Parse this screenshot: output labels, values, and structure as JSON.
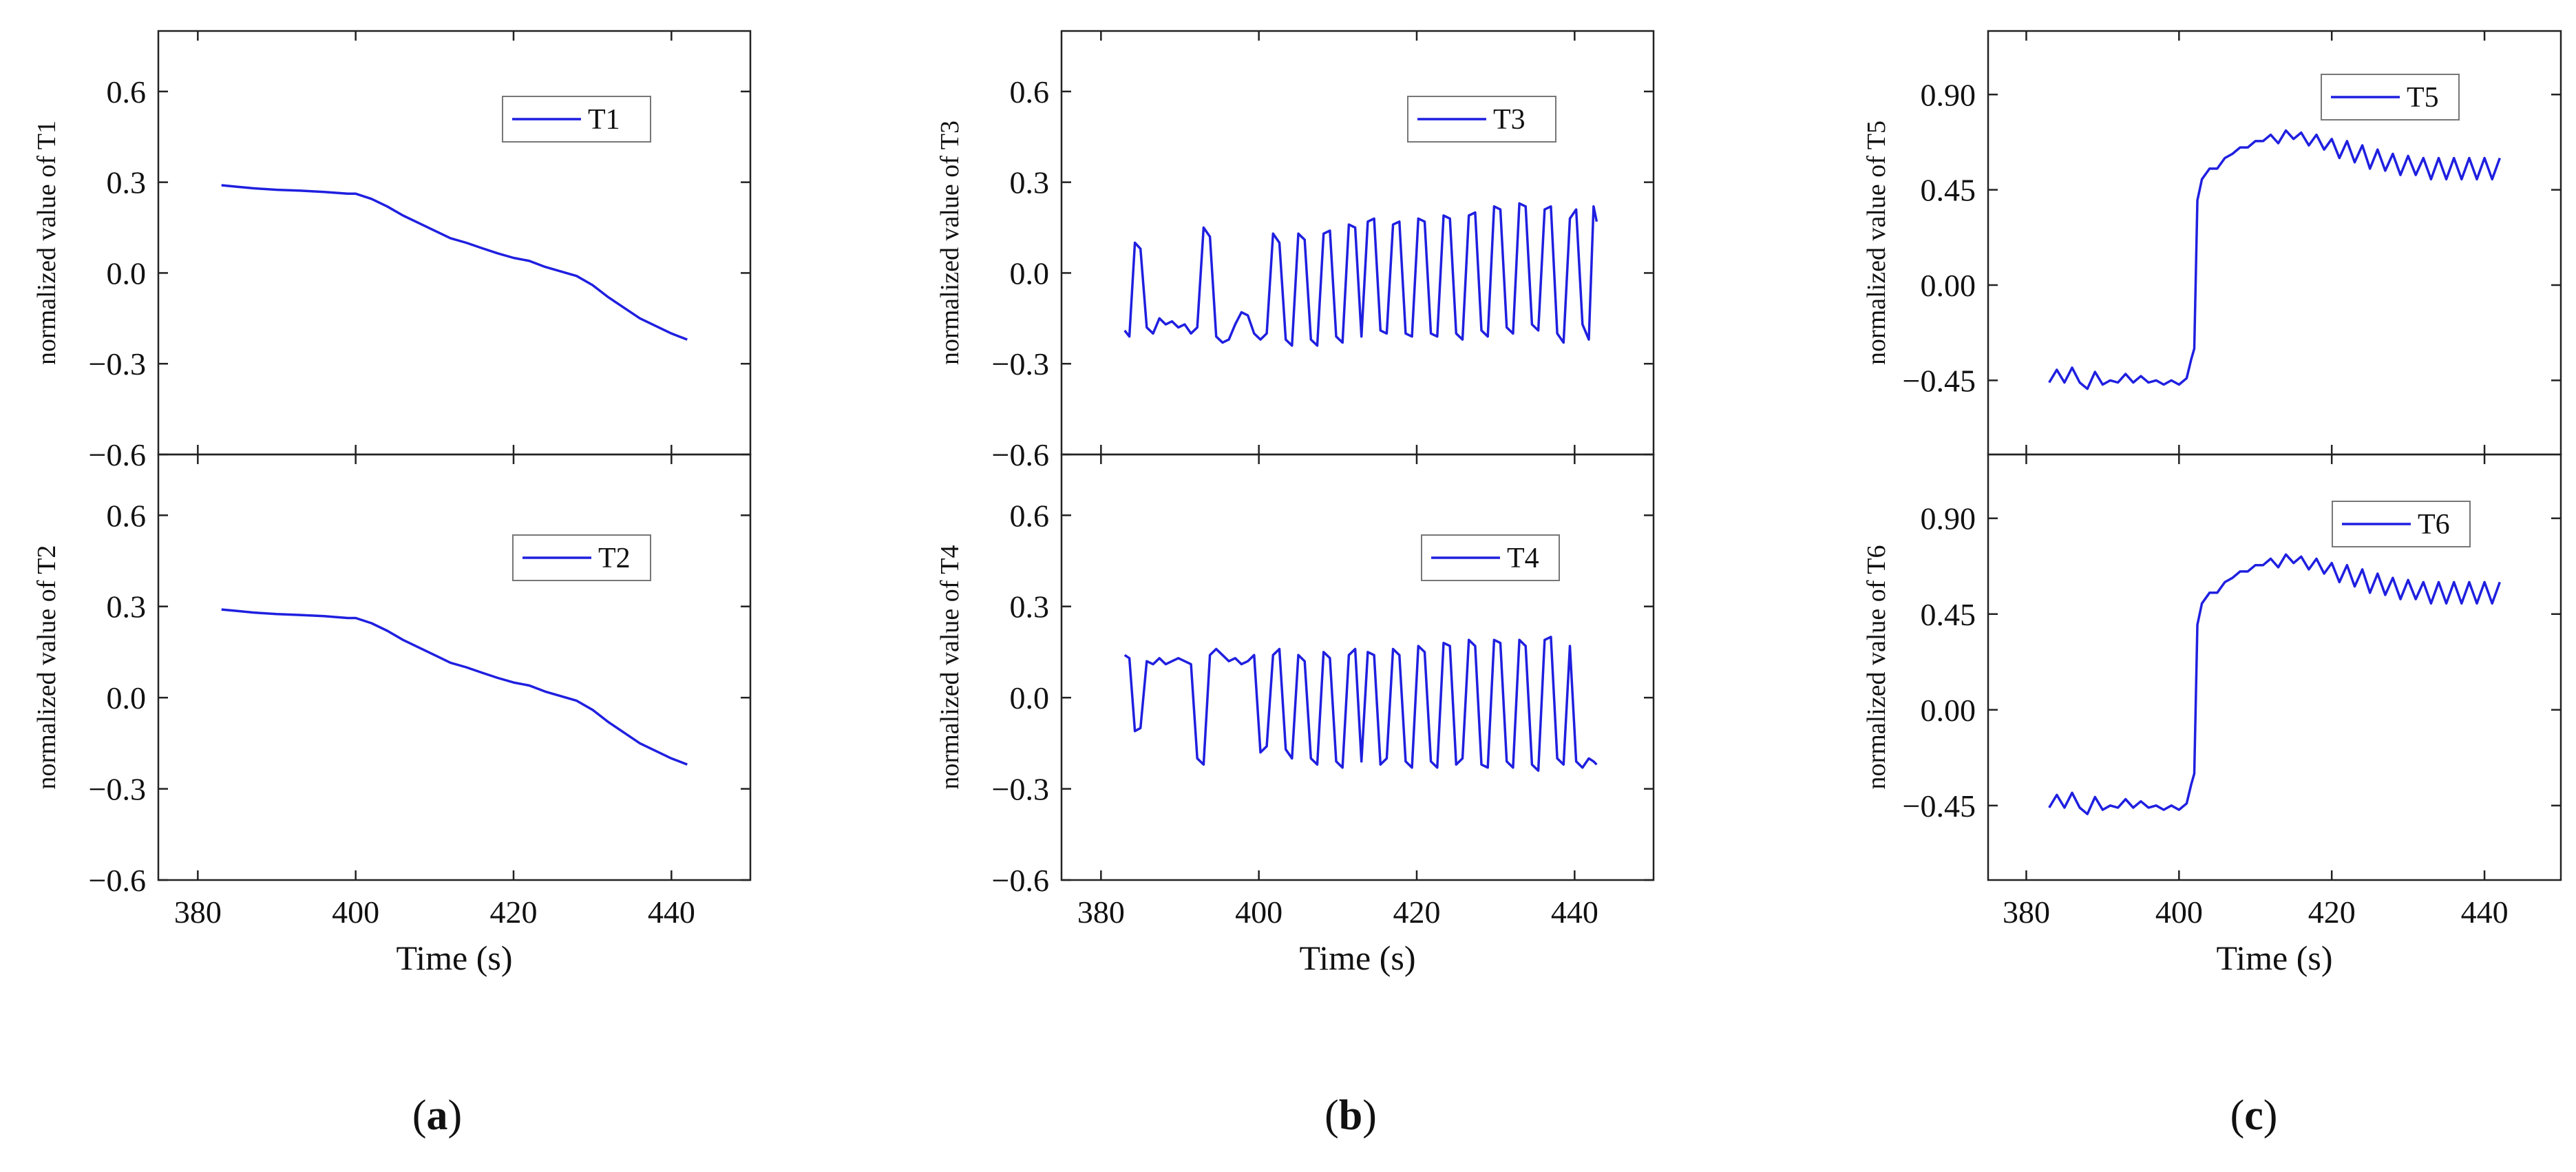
{
  "chart_data": [
    {
      "type": "line",
      "panel_label": "a",
      "xlabel": "Time (s)",
      "xlim": [
        375,
        450
      ],
      "xticks": [
        380,
        400,
        420,
        440
      ],
      "subplots": [
        {
          "ylabel": "normalized value of T1",
          "legend": "T1",
          "legend_position": "top-right",
          "color": "#1f1fe0",
          "ylim": [
            -0.6,
            0.8
          ],
          "yticks": [
            0.6,
            0.3,
            0.0,
            -0.3,
            -0.6
          ],
          "ytick_labels": [
            "0.6",
            "0.3",
            "0.0",
            "−0.3",
            "−0.6"
          ],
          "x": [
            383,
            385,
            387,
            390,
            393,
            396,
            399,
            400,
            402,
            404,
            406,
            408,
            410,
            412,
            414,
            416,
            418,
            420,
            422,
            424,
            426,
            428,
            430,
            432,
            434,
            436,
            438,
            440,
            441,
            442
          ],
          "y": [
            0.29,
            0.285,
            0.28,
            0.275,
            0.272,
            0.268,
            0.262,
            0.262,
            0.245,
            0.22,
            0.19,
            0.165,
            0.14,
            0.115,
            0.1,
            0.082,
            0.065,
            0.05,
            0.04,
            0.02,
            0.005,
            -0.01,
            -0.04,
            -0.08,
            -0.115,
            -0.15,
            -0.175,
            -0.2,
            -0.21,
            -0.22
          ]
        },
        {
          "ylabel": "normalized value of T2",
          "legend": "T2",
          "legend_position": "top-right",
          "color": "#1f1fe0",
          "ylim": [
            -0.6,
            0.8
          ],
          "yticks": [
            0.6,
            0.3,
            0.0,
            -0.3,
            -0.6
          ],
          "ytick_labels": [
            "0.6",
            "0.3",
            "0.0",
            "−0.3",
            "−0.6"
          ],
          "x": [
            383,
            385,
            387,
            390,
            393,
            396,
            399,
            400,
            402,
            404,
            406,
            408,
            410,
            412,
            414,
            416,
            418,
            420,
            422,
            424,
            426,
            428,
            430,
            432,
            434,
            436,
            438,
            440,
            441,
            442
          ],
          "y": [
            0.29,
            0.285,
            0.28,
            0.275,
            0.272,
            0.268,
            0.262,
            0.262,
            0.245,
            0.22,
            0.19,
            0.165,
            0.14,
            0.115,
            0.1,
            0.082,
            0.065,
            0.05,
            0.04,
            0.02,
            0.005,
            -0.01,
            -0.04,
            -0.08,
            -0.115,
            -0.15,
            -0.175,
            -0.2,
            -0.21,
            -0.22
          ]
        }
      ]
    },
    {
      "type": "line",
      "panel_label": "b",
      "xlabel": "Time (s)",
      "xlim": [
        375,
        450
      ],
      "xticks": [
        380,
        400,
        420,
        440
      ],
      "subplots": [
        {
          "ylabel": "normalized value of T3",
          "legend": "T3",
          "legend_position": "top-right",
          "color": "#1f1fe0",
          "ylim": [
            -0.6,
            0.8
          ],
          "yticks": [
            0.6,
            0.3,
            0.0,
            -0.3,
            -0.6
          ],
          "ytick_labels": [
            "0.6",
            "0.3",
            "0.0",
            "−0.3",
            "−0.6"
          ],
          "x": [
            383,
            383.6,
            384.3,
            385,
            385.8,
            386.6,
            387.4,
            388.2,
            389,
            389.8,
            390.6,
            391.4,
            392.2,
            393,
            393.8,
            394.6,
            395.4,
            396.2,
            397,
            397.8,
            398.6,
            399.4,
            400.2,
            401,
            401.8,
            402.6,
            403.4,
            404.2,
            405,
            405.8,
            406.6,
            407.4,
            408.2,
            409,
            409.8,
            410.6,
            411.4,
            412.2,
            413,
            413.8,
            414.6,
            415.4,
            416.2,
            417,
            417.8,
            418.6,
            419.4,
            420.2,
            421,
            421.8,
            422.6,
            423.4,
            424.2,
            425,
            425.8,
            426.6,
            427.4,
            428.2,
            429,
            429.8,
            430.6,
            431.4,
            432.2,
            433,
            433.8,
            434.6,
            435.4,
            436.2,
            437,
            437.8,
            438.6,
            439.4,
            440.2,
            441,
            441.8,
            442.4
          ],
          "y": [
            -0.19,
            -0.21,
            0.1,
            0.08,
            -0.18,
            -0.2,
            -0.15,
            -0.17,
            -0.16,
            -0.18,
            -0.17,
            -0.2,
            -0.18,
            0.15,
            0.12,
            -0.21,
            -0.23,
            -0.22,
            -0.17,
            -0.13,
            -0.14,
            -0.2,
            -0.22,
            -0.2,
            0.13,
            0.1,
            -0.22,
            -0.24,
            0.13,
            0.11,
            -0.22,
            -0.24,
            0.13,
            0.14,
            -0.21,
            -0.23,
            0.16,
            0.15,
            -0.21,
            0.17,
            0.18,
            -0.19,
            -0.2,
            0.16,
            0.17,
            -0.2,
            -0.21,
            0.18,
            0.17,
            -0.2,
            -0.21,
            0.19,
            0.18,
            -0.2,
            -0.22,
            0.19,
            0.2,
            -0.19,
            -0.21,
            0.22,
            0.21,
            -0.18,
            -0.2,
            0.23,
            0.22,
            -0.17,
            -0.19,
            0.21,
            0.22,
            -0.2,
            -0.23,
            0.18,
            0.21,
            -0.17,
            -0.22,
            0.22
          ],
          "y_tail": [
            0.17
          ]
        },
        {
          "ylabel": "normalized value of T4",
          "legend": "T4",
          "legend_position": "top-right",
          "color": "#1f1fe0",
          "ylim": [
            -0.6,
            0.8
          ],
          "yticks": [
            0.6,
            0.3,
            0.0,
            -0.3,
            -0.6
          ],
          "ytick_labels": [
            "0.6",
            "0.3",
            "0.0",
            "−0.3",
            "−0.6"
          ],
          "x": [
            383,
            383.6,
            384.3,
            385,
            385.8,
            386.6,
            387.4,
            388.2,
            389,
            389.8,
            390.6,
            391.4,
            392.2,
            393,
            393.8,
            394.6,
            395.4,
            396.2,
            397,
            397.8,
            398.6,
            399.4,
            400.2,
            401,
            401.8,
            402.6,
            403.4,
            404.2,
            405,
            405.8,
            406.6,
            407.4,
            408.2,
            409,
            409.8,
            410.6,
            411.4,
            412.2,
            413,
            413.8,
            414.6,
            415.4,
            416.2,
            417,
            417.8,
            418.6,
            419.4,
            420.2,
            421,
            421.8,
            422.6,
            423.4,
            424.2,
            425,
            425.8,
            426.6,
            427.4,
            428.2,
            429,
            429.8,
            430.6,
            431.4,
            432.2,
            433,
            433.8,
            434.6,
            435.4,
            436.2,
            437,
            437.8,
            438.6,
            439.4,
            440.2,
            441,
            441.8,
            442.4
          ],
          "y": [
            0.14,
            0.13,
            -0.11,
            -0.1,
            0.12,
            0.11,
            0.13,
            0.11,
            0.12,
            0.13,
            0.12,
            0.11,
            -0.2,
            -0.22,
            0.14,
            0.16,
            0.14,
            0.12,
            0.13,
            0.11,
            0.12,
            0.14,
            -0.18,
            -0.16,
            0.14,
            0.16,
            -0.17,
            -0.2,
            0.14,
            0.12,
            -0.2,
            -0.22,
            0.15,
            0.13,
            -0.21,
            -0.23,
            0.14,
            0.16,
            -0.21,
            0.15,
            0.14,
            -0.22,
            -0.2,
            0.16,
            0.14,
            -0.21,
            -0.23,
            0.17,
            0.15,
            -0.21,
            -0.23,
            0.18,
            0.17,
            -0.22,
            -0.2,
            0.19,
            0.17,
            -0.22,
            -0.23,
            0.19,
            0.18,
            -0.21,
            -0.23,
            0.19,
            0.17,
            -0.22,
            -0.24,
            0.19,
            0.2,
            -0.2,
            -0.22,
            0.17,
            -0.21,
            -0.23,
            -0.2,
            -0.21
          ],
          "y_tail": [
            -0.22
          ]
        }
      ]
    },
    {
      "type": "line",
      "panel_label": "c",
      "xlabel": "Time (s)",
      "xlim": [
        375,
        450
      ],
      "xticks": [
        380,
        400,
        420,
        440
      ],
      "subplots": [
        {
          "ylabel": "normalized value of T5",
          "legend": "T5",
          "legend_position": "top-right",
          "color": "#1f1fe0",
          "ylim": [
            -0.8,
            1.2
          ],
          "yticks": [
            0.9,
            0.45,
            0.0,
            -0.45
          ],
          "ytick_labels": [
            "0.90",
            "0.45",
            "0.00",
            "−0.45"
          ],
          "x": [
            383,
            384,
            385,
            386,
            387,
            388,
            389,
            390,
            391,
            392,
            393,
            394,
            395,
            396,
            397,
            398,
            399,
            400,
            401,
            401.6,
            402,
            402.4,
            403,
            404,
            405,
            406,
            407,
            408,
            409,
            410,
            411,
            412,
            413,
            414,
            415,
            416,
            417,
            418,
            419,
            420,
            421,
            422,
            423,
            424,
            425,
            426,
            427,
            428,
            429,
            430,
            431,
            432,
            433,
            434,
            435,
            436,
            437,
            438,
            439,
            440,
            441,
            442
          ],
          "y": [
            -0.46,
            -0.4,
            -0.46,
            -0.39,
            -0.46,
            -0.49,
            -0.41,
            -0.47,
            -0.45,
            -0.46,
            -0.42,
            -0.46,
            -0.43,
            -0.46,
            -0.45,
            -0.47,
            -0.45,
            -0.47,
            -0.44,
            -0.35,
            -0.3,
            0.4,
            0.5,
            0.55,
            0.55,
            0.6,
            0.62,
            0.65,
            0.65,
            0.68,
            0.68,
            0.71,
            0.67,
            0.73,
            0.69,
            0.72,
            0.66,
            0.71,
            0.64,
            0.69,
            0.6,
            0.68,
            0.58,
            0.66,
            0.55,
            0.64,
            0.54,
            0.62,
            0.52,
            0.61,
            0.52,
            0.6,
            0.5,
            0.6,
            0.5,
            0.6,
            0.5,
            0.6,
            0.5,
            0.6,
            0.5,
            0.6
          ]
        },
        {
          "ylabel": "normalized value of T6",
          "legend": "T6",
          "legend_position": "top-right",
          "color": "#1f1fe0",
          "ylim": [
            -0.8,
            1.2
          ],
          "yticks": [
            0.9,
            0.45,
            0.0,
            -0.45
          ],
          "ytick_labels": [
            "0.90",
            "0.45",
            "0.00",
            "−0.45"
          ],
          "x": [
            383,
            384,
            385,
            386,
            387,
            388,
            389,
            390,
            391,
            392,
            393,
            394,
            395,
            396,
            397,
            398,
            399,
            400,
            401,
            401.6,
            402,
            402.4,
            403,
            404,
            405,
            406,
            407,
            408,
            409,
            410,
            411,
            412,
            413,
            414,
            415,
            416,
            417,
            418,
            419,
            420,
            421,
            422,
            423,
            424,
            425,
            426,
            427,
            428,
            429,
            430,
            431,
            432,
            433,
            434,
            435,
            436,
            437,
            438,
            439,
            440,
            441,
            442
          ],
          "y": [
            -0.46,
            -0.4,
            -0.46,
            -0.39,
            -0.46,
            -0.49,
            -0.41,
            -0.47,
            -0.45,
            -0.46,
            -0.42,
            -0.46,
            -0.43,
            -0.46,
            -0.45,
            -0.47,
            -0.45,
            -0.47,
            -0.44,
            -0.35,
            -0.3,
            0.4,
            0.5,
            0.55,
            0.55,
            0.6,
            0.62,
            0.65,
            0.65,
            0.68,
            0.68,
            0.71,
            0.67,
            0.73,
            0.69,
            0.72,
            0.66,
            0.71,
            0.64,
            0.69,
            0.6,
            0.68,
            0.58,
            0.66,
            0.55,
            0.64,
            0.54,
            0.62,
            0.52,
            0.61,
            0.52,
            0.6,
            0.5,
            0.6,
            0.5,
            0.6,
            0.5,
            0.6,
            0.5,
            0.6,
            0.5,
            0.6
          ]
        }
      ]
    }
  ]
}
